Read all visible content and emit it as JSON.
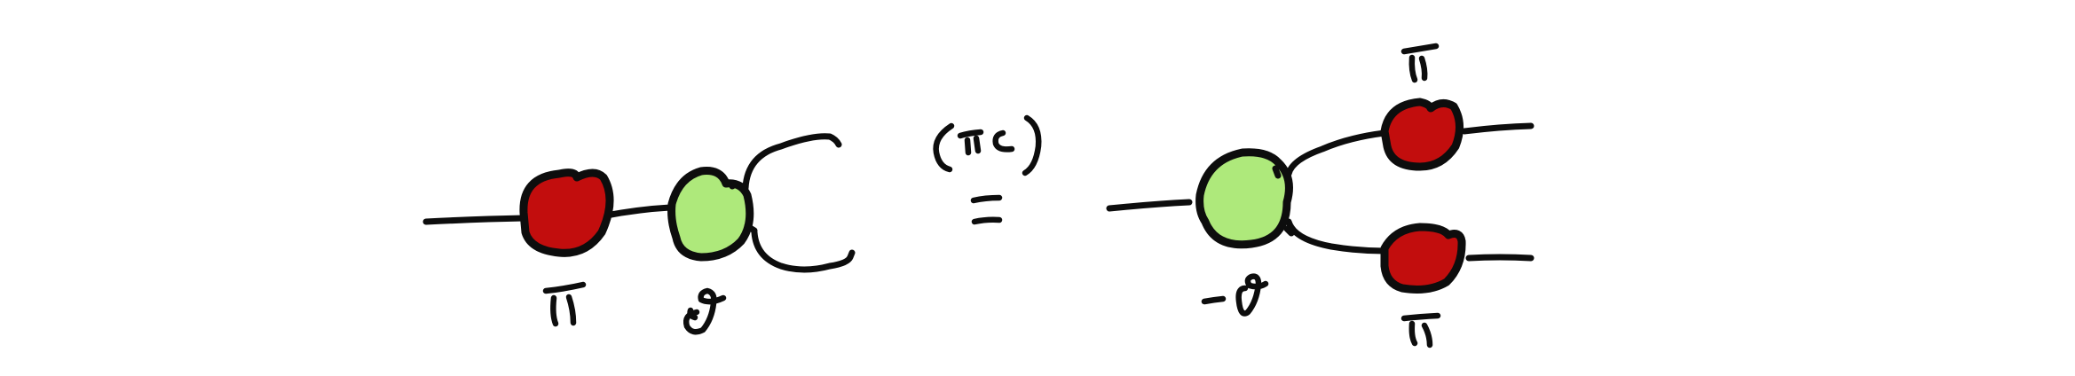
{
  "colors": {
    "stroke": "#0d0d0d",
    "red_node": "#c20d0d",
    "green_node": "#aee97b",
    "background": "#ffffff"
  },
  "left_diagram": {
    "nodes": [
      {
        "id": "pi",
        "color": "red",
        "label_glyph": "pi"
      },
      {
        "id": "theta",
        "color": "green",
        "label_glyph": "minus-theta"
      }
    ],
    "wires": [
      "input",
      "pi-to-theta",
      "cup-upper-output",
      "cup-lower-output"
    ]
  },
  "rule": {
    "name_glyph": "pi-c",
    "relation": "equals"
  },
  "right_diagram": {
    "nodes": [
      {
        "id": "theta",
        "color": "green",
        "label_glyph": "minus-theta"
      },
      {
        "id": "pi-top",
        "color": "red",
        "label_glyph": "pi"
      },
      {
        "id": "pi-bottom",
        "color": "red",
        "label_glyph": "pi"
      }
    ],
    "wires": [
      "input",
      "theta-to-pi-top",
      "theta-to-pi-bottom",
      "pi-top-output",
      "pi-bottom-output"
    ]
  }
}
